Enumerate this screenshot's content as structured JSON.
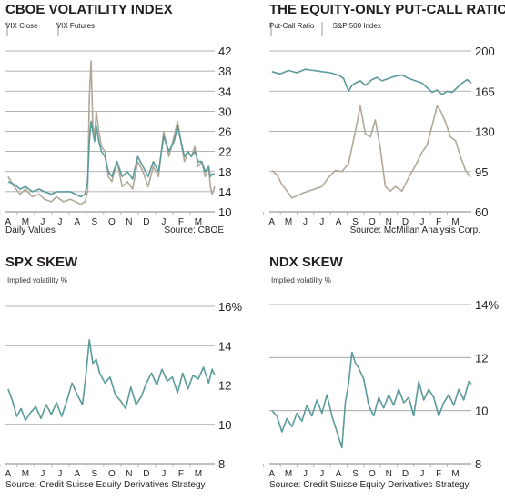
{
  "colors": {
    "teal": "#5a9a9a",
    "gray": "#b0a898",
    "grid": "#9a9a9a",
    "text": "#231f20"
  },
  "chart_data": [
    {
      "type": "line",
      "title": "CBOE VOLATILITY INDEX",
      "legend": [
        "VIX Close",
        "VIX Futures"
      ],
      "footer_left": "Daily Values",
      "footer_right": "Source: CBOE",
      "y_axis_side": "right",
      "ylim": [
        10,
        42
      ],
      "yticks": [
        "42",
        "38",
        "34",
        "30",
        "26",
        "22",
        "18",
        "14",
        "10"
      ],
      "x_categories": [
        "A",
        "M",
        "J",
        "J",
        "A",
        "S",
        "O",
        "N",
        "D",
        "J",
        "F",
        "M"
      ],
      "series": [
        {
          "name": "VIX Close",
          "color": "#b0a898",
          "x": [
            0,
            0.35,
            0.7,
            1,
            1.4,
            1.8,
            2.1,
            2.5,
            2.8,
            3.2,
            3.6,
            3.9,
            4.2,
            4.45,
            4.6,
            4.7,
            4.8,
            4.9,
            5.0,
            5.1,
            5.25,
            5.4,
            5.6,
            5.8,
            6,
            6.3,
            6.6,
            6.9,
            7.2,
            7.5,
            7.8,
            8.1,
            8.4,
            8.7,
            9,
            9.3,
            9.6,
            9.8,
            10.0,
            10.2,
            10.4,
            10.6,
            10.8,
            11,
            11.2,
            11.4,
            11.6,
            11.7,
            11.8,
            11.95
          ],
          "values": [
            17,
            15,
            13.5,
            14.5,
            13,
            13.5,
            12.5,
            12,
            13,
            12,
            12.5,
            12,
            11.5,
            12,
            14,
            33,
            40,
            27,
            25,
            30,
            26,
            23,
            22,
            17,
            16,
            20,
            15,
            16,
            14.5,
            20,
            18,
            15,
            19,
            17,
            26,
            21,
            25,
            28,
            24,
            20,
            22,
            21,
            23,
            19,
            20,
            17,
            19,
            15,
            13.5,
            15
          ]
        },
        {
          "name": "VIX Futures",
          "color": "#5a9a9a",
          "x": [
            0,
            0.35,
            0.7,
            1,
            1.4,
            1.8,
            2.1,
            2.5,
            2.8,
            3.2,
            3.6,
            3.9,
            4.2,
            4.45,
            4.6,
            4.7,
            4.8,
            4.9,
            5.0,
            5.1,
            5.25,
            5.4,
            5.6,
            5.8,
            6,
            6.3,
            6.6,
            6.9,
            7.2,
            7.5,
            7.8,
            8.1,
            8.4,
            8.7,
            9,
            9.3,
            9.6,
            9.8,
            10.0,
            10.2,
            10.4,
            10.6,
            10.8,
            11,
            11.2,
            11.4,
            11.6,
            11.7,
            11.8,
            11.95
          ],
          "values": [
            16,
            15.5,
            14.5,
            15,
            14,
            14.5,
            14,
            13.5,
            14,
            14,
            14,
            13.5,
            13,
            13.5,
            16,
            24,
            28,
            26,
            24,
            27,
            24,
            22,
            21,
            18,
            17,
            20,
            17,
            18,
            16.5,
            21,
            19,
            17,
            20,
            18,
            25,
            22,
            24,
            27,
            24,
            21,
            22,
            21,
            22,
            20,
            20,
            18,
            19,
            17,
            17.5,
            17.5
          ]
        }
      ]
    },
    {
      "type": "line",
      "title": "THE EQUITY-ONLY PUT-CALL RATIO",
      "legend": [
        "Put-Call Ratio",
        "S&P 500 Index"
      ],
      "footer_left": "",
      "footer_right": "Source: McMillan Analysis Corp.",
      "y_axis_side": "right",
      "ylim": [
        60,
        200
      ],
      "yticks": [
        "200",
        "165",
        "130",
        "95",
        "60"
      ],
      "x_categories": [
        "A",
        "M",
        "J",
        "J",
        "A",
        "S",
        "O",
        "N",
        "D",
        "J",
        "F",
        "M"
      ],
      "series": [
        {
          "name": "Put-Call Ratio",
          "color": "#b0a898",
          "x": [
            0,
            0.3,
            0.6,
            0.9,
            1.2,
            1.5,
            1.8,
            2.2,
            2.6,
            3,
            3.4,
            3.8,
            4.2,
            4.6,
            5.0,
            5.3,
            5.6,
            5.9,
            6.2,
            6.5,
            6.8,
            7.1,
            7.4,
            7.8,
            8.2,
            8.6,
            9,
            9.3,
            9.6,
            9.9,
            10.1,
            10.4,
            10.7,
            11,
            11.3,
            11.6,
            11.9
          ],
          "values": [
            96,
            92,
            84,
            78,
            72,
            74,
            76,
            78,
            80,
            82,
            90,
            96,
            95,
            102,
            130,
            152,
            128,
            125,
            140,
            115,
            82,
            78,
            82,
            78,
            90,
            100,
            112,
            118,
            135,
            152,
            148,
            138,
            125,
            122,
            108,
            96,
            90
          ]
        },
        {
          "name": "S&P 500 Index",
          "color": "#5a9a9a",
          "x": [
            0,
            0.5,
            1,
            1.5,
            2,
            2.5,
            3,
            3.5,
            4,
            4.3,
            4.6,
            4.8,
            5.0,
            5.3,
            5.6,
            6,
            6.3,
            6.6,
            7,
            7.4,
            7.8,
            8.2,
            8.6,
            9,
            9.3,
            9.6,
            9.9,
            10.2,
            10.5,
            10.8,
            11.1,
            11.4,
            11.7,
            11.95
          ],
          "values": [
            182,
            180,
            183,
            181,
            184,
            183,
            182,
            181,
            179,
            176,
            165,
            170,
            172,
            174,
            170,
            175,
            177,
            174,
            176,
            178,
            179,
            176,
            174,
            172,
            168,
            164,
            166,
            162,
            165,
            164,
            168,
            172,
            175,
            172
          ]
        }
      ]
    },
    {
      "type": "line",
      "title": "SPX SKEW",
      "subtitle": "Implied volatility %",
      "footer_left": "Source: Credit Suisse Equity Derivatives Strategy",
      "footer_right": "",
      "y_axis_side": "right",
      "ylim": [
        8,
        16
      ],
      "yticks": [
        "16%",
        "14",
        "12",
        "10",
        "8"
      ],
      "x_categories": [
        "A",
        "M",
        "J",
        "J",
        "A",
        "S",
        "O",
        "N",
        "D",
        "J",
        "F",
        "M"
      ],
      "series": [
        {
          "name": "",
          "color": "#5a9a9a",
          "x": [
            0,
            0.25,
            0.5,
            0.75,
            1,
            1.3,
            1.6,
            1.9,
            2.2,
            2.5,
            2.8,
            3.1,
            3.4,
            3.7,
            4.0,
            4.3,
            4.5,
            4.7,
            4.9,
            5.1,
            5.3,
            5.6,
            5.9,
            6.2,
            6.5,
            6.8,
            7.1,
            7.4,
            7.7,
            8,
            8.3,
            8.6,
            8.9,
            9.2,
            9.5,
            9.8,
            10.1,
            10.4,
            10.7,
            11,
            11.3,
            11.6,
            11.8,
            11.95
          ],
          "values": [
            11.8,
            11.2,
            10.4,
            10.8,
            10.2,
            10.6,
            10.9,
            10.3,
            11,
            10.5,
            11.1,
            10.4,
            11.2,
            12.1,
            11.5,
            11,
            12.5,
            14.3,
            13.1,
            13.3,
            12.6,
            12.1,
            12.4,
            11.5,
            11.2,
            10.8,
            11.9,
            11,
            11.4,
            12.1,
            12.6,
            12,
            12.8,
            12.2,
            12.4,
            11.6,
            12.6,
            11.8,
            12.5,
            12.3,
            12.9,
            12.1,
            12.8,
            12.5
          ]
        }
      ]
    },
    {
      "type": "line",
      "title": "NDX SKEW",
      "subtitle": "Implied volatility %",
      "footer_left": "Source: Credit Suisse Equity Derivatives Strategy",
      "footer_right": "",
      "y_axis_side": "right",
      "ylim": [
        8,
        14
      ],
      "yticks": [
        "14%",
        "12",
        "10",
        "8"
      ],
      "x_categories": [
        "A",
        "M",
        "J",
        "J",
        "A",
        "S",
        "O",
        "N",
        "D",
        "J",
        "F",
        "M"
      ],
      "series": [
        {
          "name": "",
          "color": "#5a9a9a",
          "x": [
            0,
            0.3,
            0.6,
            0.9,
            1.2,
            1.5,
            1.8,
            2.1,
            2.4,
            2.7,
            3,
            3.3,
            3.6,
            3.8,
            4.0,
            4.2,
            4.4,
            4.6,
            4.8,
            5.0,
            5.2,
            5.5,
            5.8,
            6.1,
            6.4,
            6.7,
            7,
            7.3,
            7.6,
            7.9,
            8.2,
            8.5,
            8.8,
            9.1,
            9.4,
            9.7,
            10,
            10.3,
            10.6,
            10.9,
            11.2,
            11.5,
            11.8,
            11.95
          ],
          "values": [
            10,
            9.8,
            9.2,
            9.7,
            9.4,
            9.9,
            9.6,
            10.2,
            9.8,
            10.4,
            9.9,
            10.6,
            9.8,
            9.4,
            9.0,
            8.6,
            10.3,
            11,
            12.2,
            11.8,
            11.6,
            11.2,
            10.2,
            9.8,
            10.5,
            10.1,
            10.6,
            10.2,
            10.8,
            10.3,
            10.5,
            9.8,
            11.1,
            10.4,
            10.8,
            10.5,
            9.8,
            10.3,
            10.6,
            10.2,
            10.8,
            10.4,
            11.1,
            11
          ]
        }
      ]
    }
  ]
}
